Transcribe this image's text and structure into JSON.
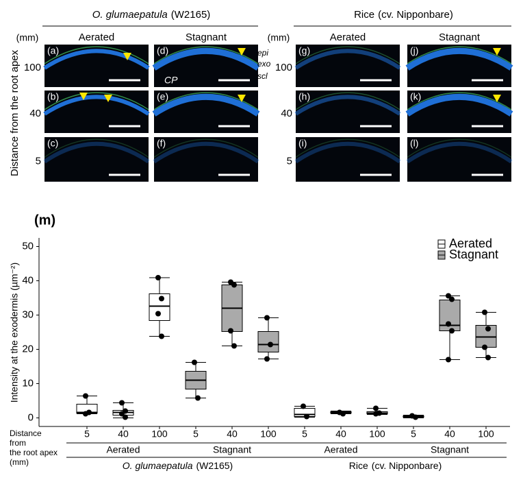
{
  "figure": {
    "groups": [
      {
        "name": "O. glumaepatula",
        "note": "(W2165)"
      },
      {
        "name": "Rice",
        "note": "(cv. Nipponbare)"
      }
    ],
    "columns": [
      "Aerated",
      "Stagnant"
    ],
    "unit": "(mm)",
    "rows": [
      "100",
      "40",
      "5"
    ],
    "row_axis_label": "Distance from the root apex",
    "panels": [
      "(a)",
      "(b)",
      "(c)",
      "(d)",
      "(e)",
      "(f)",
      "(g)",
      "(h)",
      "(i)",
      "(j)",
      "(k)",
      "(l)"
    ],
    "annotations": [
      "epi",
      "exo",
      "scl",
      "CP"
    ],
    "chart_panel": "(m)"
  },
  "chart_data": {
    "type": "box",
    "y_label": "Intensity at the exodermis (µm⁻²)",
    "x_label_lines": [
      "Distance",
      "from",
      "the root apex",
      "(mm)"
    ],
    "categories": [
      "5",
      "40",
      "100",
      "5",
      "40",
      "100",
      "5",
      "40",
      "100",
      "5",
      "40",
      "100"
    ],
    "treatments": [
      "Aerated",
      "Stagnant",
      "Aerated",
      "Stagnant"
    ],
    "species": [
      {
        "name": "O. glumaepatula",
        "note": "(W2165)"
      },
      {
        "name": "Rice",
        "note": "(cv. Nipponbare)"
      }
    ],
    "ylim": [
      -2.5,
      52.5
    ],
    "yticks": [
      0,
      10,
      20,
      30,
      40,
      50
    ],
    "legend": "top-right",
    "series": [
      {
        "name": "Aerated",
        "color": "#ffffff",
        "values": [
          {
            "min": 1.2,
            "q1": 1.4,
            "median": 1.6,
            "q3": 4.0,
            "max": 6.4,
            "points": [
              6.4,
              1.6,
              1.2
            ]
          },
          {
            "min": 0,
            "q1": 0.8,
            "median": 1.6,
            "q3": 2.2,
            "max": 4.4,
            "points": [
              4.4,
              2.0,
              1.2,
              0.2
            ]
          },
          {
            "min": 23.8,
            "q1": 28.4,
            "median": 32.6,
            "q3": 36.2,
            "max": 40.9,
            "points": [
              40.9,
              34.8,
              30.4,
              23.8
            ]
          },
          null,
          null,
          null,
          {
            "min": 0.2,
            "q1": 0.4,
            "median": 1.0,
            "q3": 2.8,
            "max": 3.4,
            "points": [
              3.4,
              0.4
            ]
          },
          {
            "min": 1.2,
            "q1": 1.4,
            "median": 1.6,
            "q3": 1.8,
            "max": 2.0,
            "points": [
              1.6,
              1.2
            ]
          },
          {
            "min": 1.0,
            "q1": 1.2,
            "median": 1.4,
            "q3": 1.8,
            "max": 2.8,
            "points": [
              2.8,
              1.4,
              1.2
            ]
          },
          null,
          null,
          null
        ]
      },
      {
        "name": "Stagnant",
        "color": "#aaaaaa",
        "values": [
          null,
          null,
          null,
          {
            "min": 5.8,
            "q1": 8.4,
            "median": 11.0,
            "q3": 13.6,
            "max": 16.2,
            "points": [
              16.2,
              5.8
            ]
          },
          {
            "min": 21.0,
            "q1": 25.2,
            "median": 32.0,
            "q3": 38.8,
            "max": 39.6,
            "points": [
              39.6,
              38.8,
              25.4,
              21.0
            ]
          },
          {
            "min": 17.2,
            "q1": 19.2,
            "median": 21.4,
            "q3": 25.2,
            "max": 29.2,
            "points": [
              29.2,
              21.4,
              17.2
            ]
          },
          null,
          null,
          null,
          {
            "min": 0,
            "q1": 0.2,
            "median": 0.4,
            "q3": 0.6,
            "max": 0.8,
            "points": [
              0.6,
              0.2
            ]
          },
          {
            "min": 17.0,
            "q1": 25.4,
            "median": 27.0,
            "q3": 34.4,
            "max": 35.6,
            "points": [
              35.6,
              34.6,
              27.4,
              25.4,
              17.0
            ]
          },
          {
            "min": 17.6,
            "q1": 20.6,
            "median": 23.6,
            "q3": 27.0,
            "max": 30.8,
            "points": [
              30.8,
              26.0,
              20.6,
              17.6
            ]
          }
        ]
      }
    ]
  }
}
